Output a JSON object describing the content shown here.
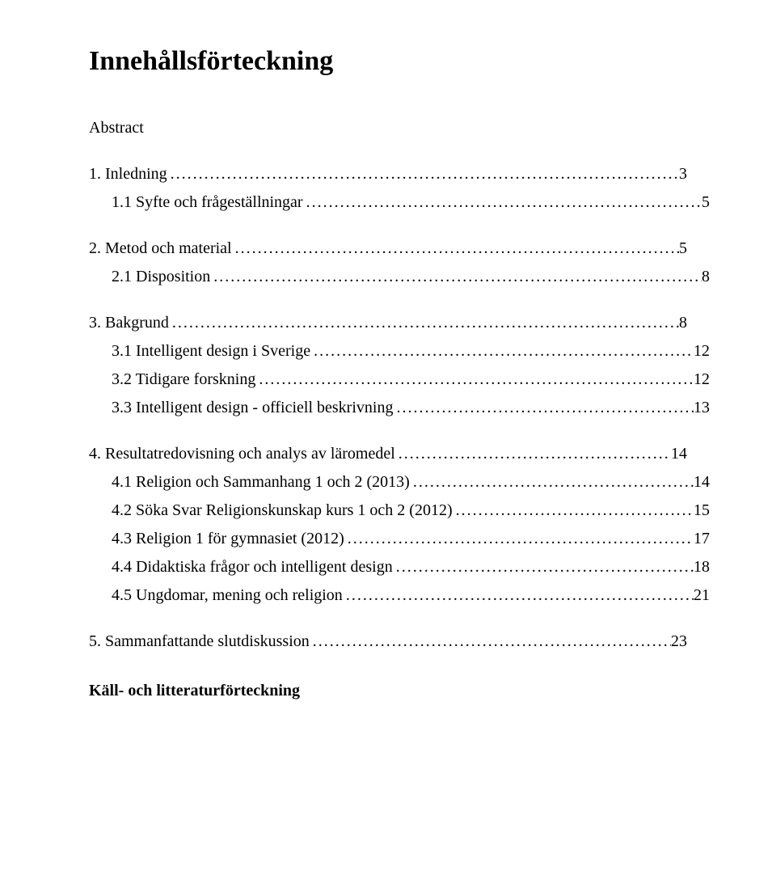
{
  "title": "Innehållsförteckning",
  "abstract_label": "Abstract",
  "kall_label": "Käll- och litteraturförteckning",
  "toc": {
    "l1": {
      "label": "1. Inledning",
      "page": "3"
    },
    "l1_1": {
      "label": "1.1 Syfte och frågeställningar",
      "page": "5"
    },
    "l2": {
      "label": "2. Metod och material",
      "page": "5"
    },
    "l2_1": {
      "label": "2.1 Disposition",
      "page": "8"
    },
    "l3": {
      "label": "3. Bakgrund",
      "page": "8"
    },
    "l3_1": {
      "label": "3.1 Intelligent design i Sverige",
      "page": "12"
    },
    "l3_2": {
      "label": "3.2 Tidigare forskning",
      "page": "12"
    },
    "l3_3": {
      "label": "3.3 Intelligent design - officiell beskrivning",
      "page": "13"
    },
    "l4": {
      "label": "4. Resultatredovisning och analys av läromedel",
      "page": "14"
    },
    "l4_1": {
      "label": "4.1 Religion och Sammanhang 1 och 2 (2013)",
      "page": "14"
    },
    "l4_2": {
      "label": "4.2 Söka Svar Religionskunskap kurs 1 och 2 (2012)",
      "page": "15"
    },
    "l4_3": {
      "label": "4.3 Religion 1 för gymnasiet (2012)",
      "page": "17"
    },
    "l4_4": {
      "label": "4.4 Didaktiska frågor och intelligent design",
      "page": "18"
    },
    "l4_5": {
      "label": "4.5 Ungdomar, mening och religion",
      "page": "21"
    },
    "l5": {
      "label": "5. Sammanfattande slutdiskussion",
      "page": "23"
    }
  }
}
